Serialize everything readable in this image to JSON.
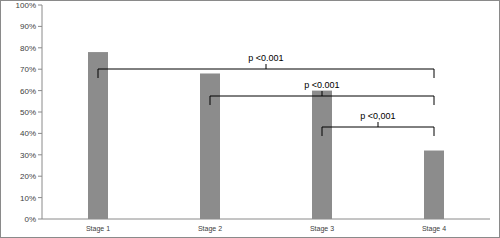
{
  "chart_data": {
    "type": "bar",
    "categories": [
      "Stage 1",
      "Stage 2",
      "Stage 3",
      "Stage 4"
    ],
    "values": [
      78,
      68,
      60,
      32
    ],
    "color": "#8c8c8c",
    "ylim": [
      0,
      100
    ],
    "yticks": [
      {
        "value": 0,
        "label": "0%"
      },
      {
        "value": 10,
        "label": "10%"
      },
      {
        "value": 20,
        "label": "20%"
      },
      {
        "value": 30,
        "label": "30%"
      },
      {
        "value": 40,
        "label": "40%"
      },
      {
        "value": 50,
        "label": "50%"
      },
      {
        "value": 60,
        "label": "60%"
      },
      {
        "value": 70,
        "label": "70%"
      },
      {
        "value": 80,
        "label": "80%"
      },
      {
        "value": 90,
        "label": "90%"
      },
      {
        "value": 100,
        "label": "100%"
      }
    ],
    "grid": false,
    "annotations": [
      {
        "text": "p <0.001",
        "from": "Stage 1",
        "to": "Stage 4"
      },
      {
        "text": "p <0.001",
        "from": "Stage 2",
        "to": "Stage 4"
      },
      {
        "text": "p <0,001",
        "from": "Stage 3",
        "to": "Stage 4"
      }
    ]
  }
}
